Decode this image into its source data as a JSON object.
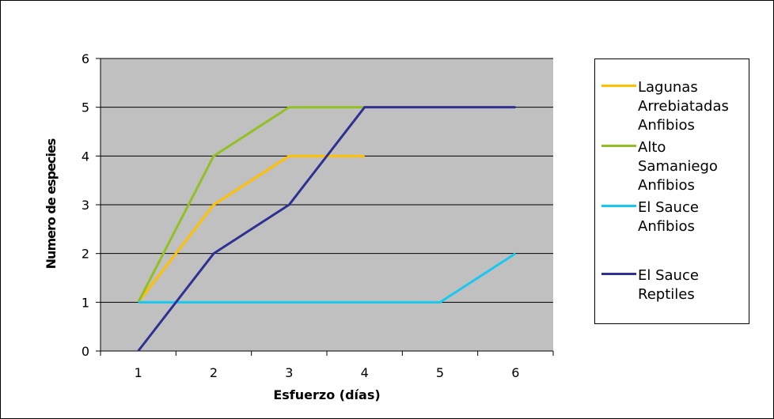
{
  "chart_data": {
    "type": "line",
    "title": "",
    "xlabel": "Esfuerzo (días)",
    "ylabel": "Numero de especies",
    "categories": [
      "1",
      "2",
      "3",
      "4",
      "5",
      "6"
    ],
    "ylim": [
      0,
      6
    ],
    "yticks": [
      "0",
      "1",
      "2",
      "3",
      "4",
      "5",
      "6"
    ],
    "grid": true,
    "plot_background": "#c0c0c0",
    "legend_position": "right",
    "series": [
      {
        "name": "Lagunas\nArrebiatadas\nAnfibios",
        "color": "#ffc000",
        "values": [
          1,
          3,
          4,
          4,
          null,
          null
        ]
      },
      {
        "name": "Alto\nSamaniego\nAnfibios",
        "color": "#92c024",
        "values": [
          1,
          4,
          5,
          5,
          null,
          null
        ]
      },
      {
        "name": "El Sauce\nAnfibios",
        "color": "#19c8f0",
        "values": [
          1,
          1,
          1,
          1,
          1,
          2
        ]
      },
      {
        "name": "El Sauce\nReptiles",
        "color": "#2e3192",
        "values": [
          0,
          2,
          3,
          5,
          5,
          5
        ]
      }
    ]
  }
}
